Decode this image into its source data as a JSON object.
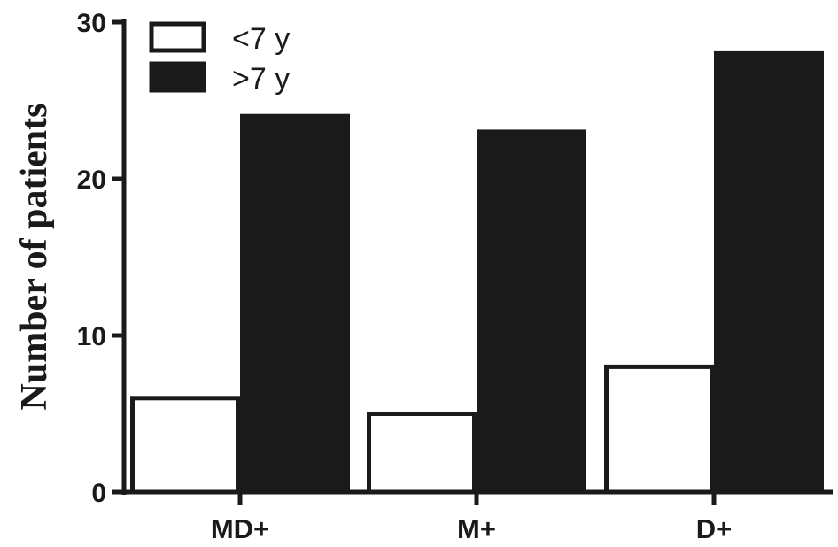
{
  "chart_data": {
    "type": "bar",
    "categories": [
      "MD+",
      "M+",
      "D+"
    ],
    "series": [
      {
        "name": "<7 y",
        "values": [
          6,
          5,
          8
        ],
        "fill": "#ffffff",
        "stroke": "#1a1a1a"
      },
      {
        "name": ">7 y",
        "values": [
          24,
          23,
          28
        ],
        "fill": "#1a1a1a",
        "stroke": "#1a1a1a"
      }
    ],
    "title": "",
    "xlabel": "",
    "ylabel": "Number of patients",
    "ylim": [
      0,
      30
    ],
    "yticks": [
      0,
      10,
      20,
      30
    ],
    "grid": false,
    "legend_position": "top-left"
  }
}
